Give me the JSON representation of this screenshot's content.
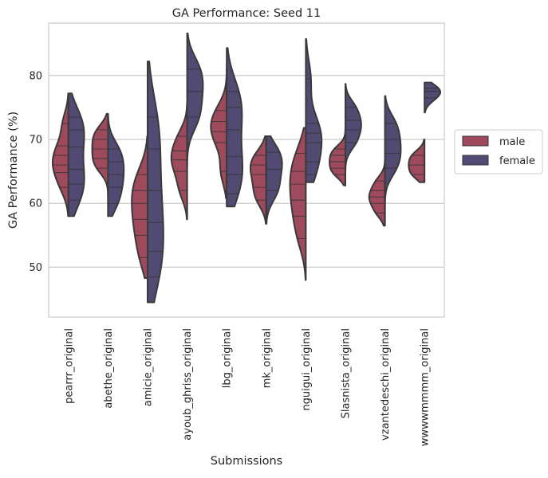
{
  "chart_data": {
    "type": "violin",
    "title": "GA Performance: Seed 11",
    "xlabel": "Submissions",
    "ylabel": "GA Performance (%)",
    "ylim": [
      42.2,
      88.2
    ],
    "yticks": [
      50,
      60,
      70,
      80
    ],
    "grid": true,
    "split": true,
    "inner": "stick",
    "legend_position": "outside-right",
    "categories": [
      "pearrr_original",
      "abethe_original",
      "amicie_original",
      "ayoub_ghriss_original",
      "lbg_original",
      "mk_original",
      "nguigui_original",
      "Slasnista_original",
      "vzantedeschi_original",
      "wwwwmmmm_original"
    ],
    "series": [
      {
        "name": "male",
        "color": "#9e4a5c",
        "violins": [
          {
            "ymin": 58.0,
            "ymax": 77.2,
            "samples": [
              62.5,
              64.8,
              66.0,
              67.5,
              69.0,
              72.5
            ]
          },
          {
            "ymin": 58.0,
            "ymax": 74.0,
            "samples": [
              65.5,
              67.0,
              68.5,
              70.0,
              71.5
            ]
          },
          {
            "ymin": 48.3,
            "ymax": 70.5,
            "samples": [
              51.5,
              55.0,
              57.5,
              60.0,
              62.0,
              64.5
            ]
          },
          {
            "ymin": 57.5,
            "ymax": 75.8,
            "samples": [
              62.0,
              65.0,
              66.8,
              68.2,
              70.5
            ]
          },
          {
            "ymin": 60.8,
            "ymax": 81.5,
            "samples": [
              65.0,
              69.5,
              71.2,
              72.8,
              74.5
            ]
          },
          {
            "ymin": 56.8,
            "ymax": 70.5,
            "samples": [
              60.5,
              62.5,
              64.5,
              66.0,
              67.5
            ]
          },
          {
            "ymin": 48.0,
            "ymax": 71.8,
            "samples": [
              54.5,
              58.0,
              60.5,
              63.0,
              65.0,
              67.8
            ]
          },
          {
            "ymin": 62.8,
            "ymax": 72.2,
            "samples": [
              64.5,
              65.5,
              66.5,
              67.5,
              68.5
            ]
          },
          {
            "ymin": 56.5,
            "ymax": 66.8,
            "samples": [
              58.5,
              60.0,
              61.0,
              62.0,
              63.5
            ]
          },
          {
            "ymin": 63.3,
            "ymax": 70.0,
            "samples": [
              64.5,
              66.0,
              67.5
            ]
          }
        ]
      },
      {
        "name": "female",
        "color": "#524a73",
        "violins": [
          {
            "ymin": 58.0,
            "ymax": 77.2,
            "samples": [
              60.5,
              63.0,
              65.3,
              68.8,
              71.5,
              73.5
            ]
          },
          {
            "ymin": 58.0,
            "ymax": 74.0,
            "samples": [
              60.0,
              62.5,
              64.5,
              66.5,
              68.5
            ]
          },
          {
            "ymin": 44.5,
            "ymax": 82.2,
            "samples": [
              48.5,
              52.5,
              57.0,
              62.0,
              68.5,
              73.5
            ]
          },
          {
            "ymin": 57.5,
            "ymax": 86.6,
            "samples": [
              73.5,
              77.5,
              81.0
            ]
          },
          {
            "ymin": 59.5,
            "ymax": 84.3,
            "samples": [
              61.5,
              64.5,
              67.3,
              71.5,
              75.0,
              77.5
            ]
          },
          {
            "ymin": 56.8,
            "ymax": 70.5,
            "samples": [
              62.0,
              65.3,
              68.0
            ]
          },
          {
            "ymin": 63.3,
            "ymax": 85.7,
            "samples": [
              64.5,
              66.5,
              69.5,
              71.0,
              72.5,
              79.5
            ]
          },
          {
            "ymin": 62.8,
            "ymax": 78.7,
            "samples": [
              69.5,
              71.5,
              73.0,
              75.0
            ]
          },
          {
            "ymin": 56.5,
            "ymax": 76.8,
            "samples": [
              65.5,
              67.8,
              70.0,
              72.5
            ]
          },
          {
            "ymin": 74.2,
            "ymax": 78.9,
            "samples": [
              76.5,
              77.5,
              78.0
            ]
          }
        ]
      }
    ]
  }
}
